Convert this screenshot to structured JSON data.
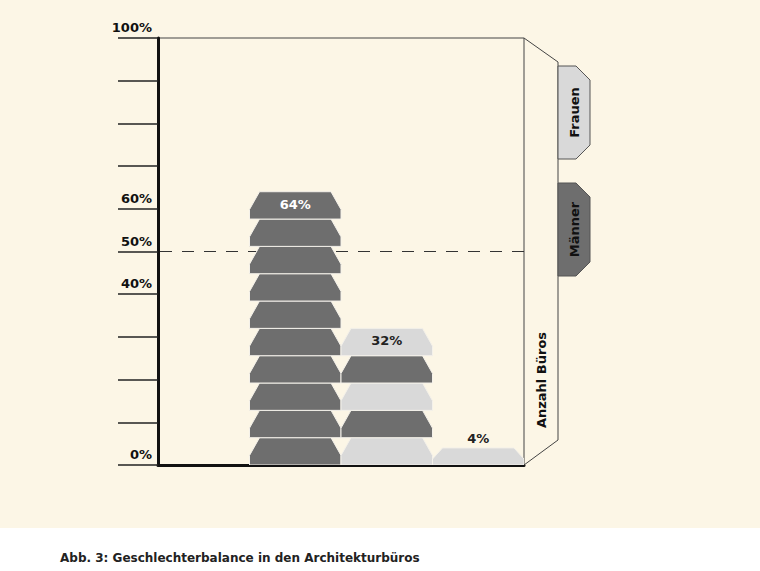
{
  "chart_data": {
    "type": "bar",
    "title": "Abb. 3: Geschlechterbalance in den Architekturbüros",
    "ylabel": "Anzahl Büros",
    "categories": [
      null,
      null,
      null,
      null
    ],
    "values": [
      null,
      64,
      32,
      4
    ],
    "value_labels": [
      null,
      "64%",
      "32%",
      "4%"
    ],
    "segments": [
      [],
      [
        "Männer",
        "Männer",
        "Männer",
        "Männer",
        "Männer",
        "Männer",
        "Männer",
        "Männer",
        "Männer",
        "Männer"
      ],
      [
        "Frauen",
        "Männer",
        "Frauen",
        "Männer",
        "Frauen"
      ],
      [
        "Frauen"
      ]
    ],
    "series": [
      {
        "name": "Frauen",
        "color": "#d9d9d9"
      },
      {
        "name": "Männer",
        "color": "#6e6e6e"
      }
    ],
    "ylim": [
      0,
      100
    ],
    "yticks": [
      {
        "value": 0,
        "label": "0%"
      },
      {
        "value": 10,
        "label": null
      },
      {
        "value": 20,
        "label": null
      },
      {
        "value": 30,
        "label": null
      },
      {
        "value": 40,
        "label": "40%"
      },
      {
        "value": 50,
        "label": "50%"
      },
      {
        "value": 60,
        "label": "60%"
      },
      {
        "value": 70,
        "label": null
      },
      {
        "value": 80,
        "label": null
      },
      {
        "value": 90,
        "label": null
      },
      {
        "value": 100,
        "label": "100%"
      }
    ],
    "hline": 50,
    "grid": false,
    "legend": "right",
    "data_labels": true,
    "tick_labels": "y"
  }
}
